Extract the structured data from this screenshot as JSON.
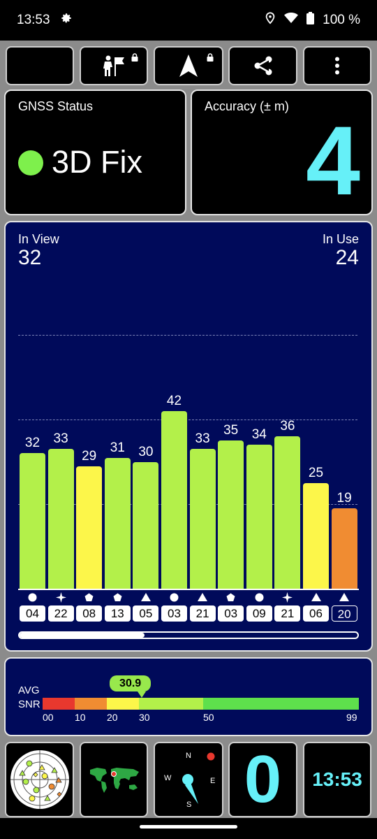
{
  "status_bar": {
    "time": "13:53",
    "battery": "100 %",
    "icons": [
      "gear-icon",
      "location-icon",
      "wifi-icon",
      "battery-icon"
    ]
  },
  "toolbar": {
    "icons": [
      "moon-icon",
      "hiker-flag-icon",
      "navigation-arrow-icon",
      "share-icon",
      "more-vert-icon"
    ]
  },
  "gnss_status": {
    "label": "GNSS Status",
    "value": "3D Fix",
    "indicator_color": "#7ef04c"
  },
  "accuracy": {
    "label": "Accuracy (± m)",
    "value": "4",
    "value_color": "#66f0f8"
  },
  "satellites": {
    "in_view_label": "In View",
    "in_view": "32",
    "in_use_label": "In Use",
    "in_use": "24"
  },
  "chart_data": {
    "type": "bar",
    "categories": [
      "04",
      "22",
      "08",
      "13",
      "05",
      "03",
      "21",
      "03",
      "09",
      "21",
      "06",
      "20"
    ],
    "values": [
      32,
      33,
      29,
      31,
      30,
      42,
      33,
      35,
      34,
      36,
      25,
      19
    ],
    "value_labels": [
      "32",
      "33",
      "29",
      "31",
      "30",
      "42",
      "33",
      "35",
      "34",
      "36",
      "25",
      "19"
    ],
    "constellation_symbols": [
      "circle",
      "star",
      "pentagon",
      "pentagon",
      "triangle",
      "circle",
      "triangle",
      "pentagon",
      "circle",
      "star",
      "triangle",
      "triangle"
    ],
    "used_in_fix": [
      true,
      true,
      true,
      true,
      true,
      true,
      true,
      true,
      true,
      true,
      true,
      false
    ],
    "bar_colors": [
      "#b3f04a",
      "#b3f04a",
      "#fcf64a",
      "#b3f04a",
      "#b3f04a",
      "#b3f04a",
      "#b3f04a",
      "#b3f04a",
      "#b3f04a",
      "#b3f04a",
      "#fcf64a",
      "#f08c32"
    ],
    "ylim": [
      0,
      65
    ],
    "gridlines": [
      20,
      40,
      60
    ],
    "title": "",
    "xlabel": "",
    "ylabel": ""
  },
  "snr": {
    "label_top": "AVG",
    "label_bottom": "SNR",
    "avg": "30.9",
    "avg_value": 30.9,
    "ticks": [
      "00",
      "10",
      "20",
      "30",
      "50",
      "99"
    ],
    "tick_values": [
      0,
      10,
      20,
      30,
      50,
      99
    ],
    "segments": [
      {
        "from": 0,
        "to": 10,
        "color": "#e8382e"
      },
      {
        "from": 10,
        "to": 20,
        "color": "#f08c32"
      },
      {
        "from": 20,
        "to": 30,
        "color": "#fcf64a"
      },
      {
        "from": 30,
        "to": 50,
        "color": "#b3f04a"
      },
      {
        "from": 50,
        "to": 99,
        "color": "#5ee04c"
      }
    ]
  },
  "scroll_position": 0.37,
  "bottom_tiles": {
    "compass_labels": {
      "n": "N",
      "e": "E",
      "s": "S",
      "w": "W"
    },
    "speed": "0",
    "clock": "13:53",
    "accent": "#66f0f8",
    "icons": [
      "sky-plot-icon",
      "world-map-icon",
      "compass-icon"
    ]
  }
}
